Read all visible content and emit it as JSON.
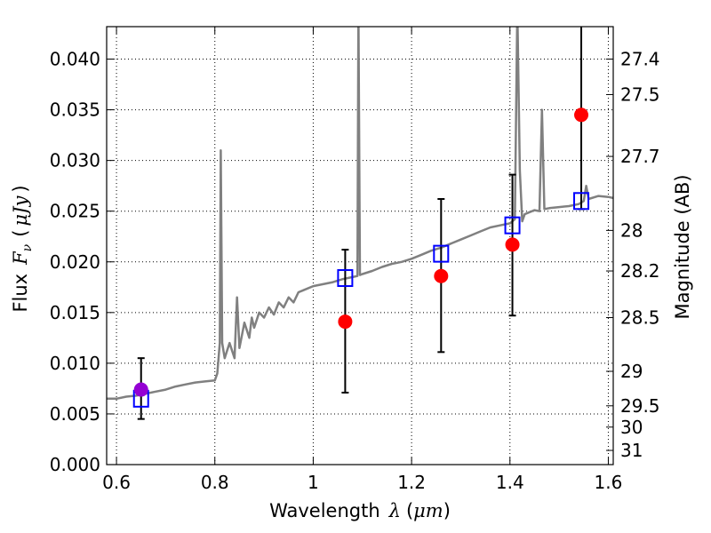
{
  "chart_data": {
    "type": "scatter",
    "xlabel": "Wavelength",
    "xlabel_symbol": "λ",
    "xlabel_unit": "μm",
    "ylabel": "Flux",
    "ylabel_symbol": "F",
    "ylabel_sub": "ν",
    "ylabel_unit": "μJy",
    "y2label": "Magnitude (AB)",
    "xlim": [
      0.58,
      1.61
    ],
    "ylim": [
      0.0,
      0.0432
    ],
    "grid": true,
    "x_ticks": [
      0.6,
      0.8,
      1.0,
      1.2,
      1.4,
      1.6
    ],
    "x_tick_labels": [
      "0.6",
      "0.8",
      "1",
      "1.2",
      "1.4",
      "1.6"
    ],
    "y_ticks": [
      0.0,
      0.005,
      0.01,
      0.015,
      0.02,
      0.025,
      0.03,
      0.035,
      0.04
    ],
    "y_tick_labels": [
      "0.000",
      "0.005",
      "0.010",
      "0.015",
      "0.020",
      "0.025",
      "0.030",
      "0.035",
      "0.040"
    ],
    "y2_ticks": [
      {
        "label": "27.4",
        "flux": 0.04
      },
      {
        "label": "27.5",
        "flux": 0.0365
      },
      {
        "label": "27.7",
        "flux": 0.0304
      },
      {
        "label": "28",
        "flux": 0.0231
      },
      {
        "label": "28.2",
        "flux": 0.0191
      },
      {
        "label": "28.5",
        "flux": 0.0145
      },
      {
        "label": "29",
        "flux": 0.0092
      },
      {
        "label": "29.5",
        "flux": 0.0058
      },
      {
        "label": "30",
        "flux": 0.0037
      },
      {
        "label": "31",
        "flux": 0.0014
      }
    ],
    "series": [
      {
        "kind": "model-spectrum",
        "color": "#808080",
        "x": [
          0.58,
          0.6,
          0.62,
          0.64,
          0.66,
          0.68,
          0.7,
          0.72,
          0.74,
          0.76,
          0.78,
          0.8,
          0.805,
          0.81,
          0.812,
          0.815,
          0.82,
          0.83,
          0.84,
          0.845,
          0.85,
          0.86,
          0.87,
          0.875,
          0.88,
          0.89,
          0.9,
          0.91,
          0.92,
          0.93,
          0.94,
          0.95,
          0.96,
          0.97,
          0.98,
          1.0,
          1.02,
          1.04,
          1.06,
          1.08,
          1.09,
          1.092,
          1.095,
          1.1,
          1.12,
          1.14,
          1.16,
          1.18,
          1.2,
          1.22,
          1.24,
          1.26,
          1.28,
          1.3,
          1.32,
          1.34,
          1.36,
          1.38,
          1.4,
          1.41,
          1.415,
          1.42,
          1.425,
          1.43,
          1.44,
          1.45,
          1.46,
          1.465,
          1.47,
          1.48,
          1.5,
          1.52,
          1.54,
          1.55,
          1.555,
          1.56,
          1.58,
          1.6,
          1.61
        ],
        "y": [
          0.0065,
          0.0065,
          0.0067,
          0.0068,
          0.007,
          0.0072,
          0.0074,
          0.0077,
          0.0079,
          0.0081,
          0.0082,
          0.0083,
          0.009,
          0.012,
          0.031,
          0.012,
          0.0105,
          0.012,
          0.0105,
          0.0165,
          0.0115,
          0.014,
          0.0125,
          0.0145,
          0.0135,
          0.015,
          0.0145,
          0.0155,
          0.0148,
          0.016,
          0.0155,
          0.0165,
          0.016,
          0.017,
          0.0172,
          0.0176,
          0.0178,
          0.018,
          0.0183,
          0.0185,
          0.0186,
          0.045,
          0.0187,
          0.0188,
          0.0191,
          0.0195,
          0.0198,
          0.02,
          0.0203,
          0.0207,
          0.0211,
          0.0214,
          0.0218,
          0.0222,
          0.0226,
          0.023,
          0.0234,
          0.0236,
          0.0238,
          0.0242,
          0.045,
          0.029,
          0.024,
          0.0247,
          0.0249,
          0.0251,
          0.025,
          0.035,
          0.0252,
          0.0253,
          0.0254,
          0.0255,
          0.0257,
          0.026,
          0.0275,
          0.0262,
          0.0265,
          0.0264,
          0.0263
        ]
      },
      {
        "kind": "observed-flux",
        "color": "#ff0000",
        "x": [
          1.065,
          1.26,
          1.405,
          1.545
        ],
        "y": [
          0.0141,
          0.0186,
          0.0217,
          0.0345
        ],
        "yerr_low": [
          0.0071,
          0.0111,
          0.0147,
          0.0252
        ],
        "yerr_high": [
          0.0212,
          0.0262,
          0.0286,
          0.044
        ]
      },
      {
        "kind": "observed-flux-optical",
        "color": "#9400d3",
        "x": [
          0.65
        ],
        "y": [
          0.0074
        ],
        "yerr_low": [
          0.0045
        ],
        "yerr_high": [
          0.0105
        ]
      },
      {
        "kind": "model-photometry",
        "color": "#0000ff",
        "x": [
          0.65,
          1.065,
          1.26,
          1.405,
          1.545
        ],
        "y": [
          0.0065,
          0.0184,
          0.0208,
          0.0236,
          0.026
        ]
      }
    ]
  }
}
